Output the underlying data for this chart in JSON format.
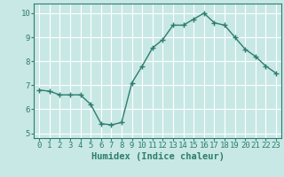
{
  "x": [
    0,
    1,
    2,
    3,
    4,
    5,
    6,
    7,
    8,
    9,
    10,
    11,
    12,
    13,
    14,
    15,
    16,
    17,
    18,
    19,
    20,
    21,
    22,
    23
  ],
  "y": [
    6.8,
    6.75,
    6.6,
    6.6,
    6.6,
    6.2,
    5.4,
    5.35,
    5.45,
    7.1,
    7.8,
    8.55,
    8.9,
    9.5,
    9.5,
    9.75,
    10.0,
    9.6,
    9.5,
    9.0,
    8.5,
    8.2,
    7.8,
    7.5
  ],
  "line_color": "#2d7d6e",
  "bg_color": "#c8e8e5",
  "grid_color": "#ffffff",
  "xlabel": "Humidex (Indice chaleur)",
  "xlim": [
    -0.5,
    23.5
  ],
  "ylim": [
    4.8,
    10.4
  ],
  "yticks": [
    5,
    6,
    7,
    8,
    9,
    10
  ],
  "xticks": [
    0,
    1,
    2,
    3,
    4,
    5,
    6,
    7,
    8,
    9,
    10,
    11,
    12,
    13,
    14,
    15,
    16,
    17,
    18,
    19,
    20,
    21,
    22,
    23
  ],
  "marker": "+",
  "markersize": 4,
  "linewidth": 1.0,
  "tick_color": "#2d7d6e",
  "label_fontsize": 6.5,
  "xlabel_fontsize": 7.5
}
